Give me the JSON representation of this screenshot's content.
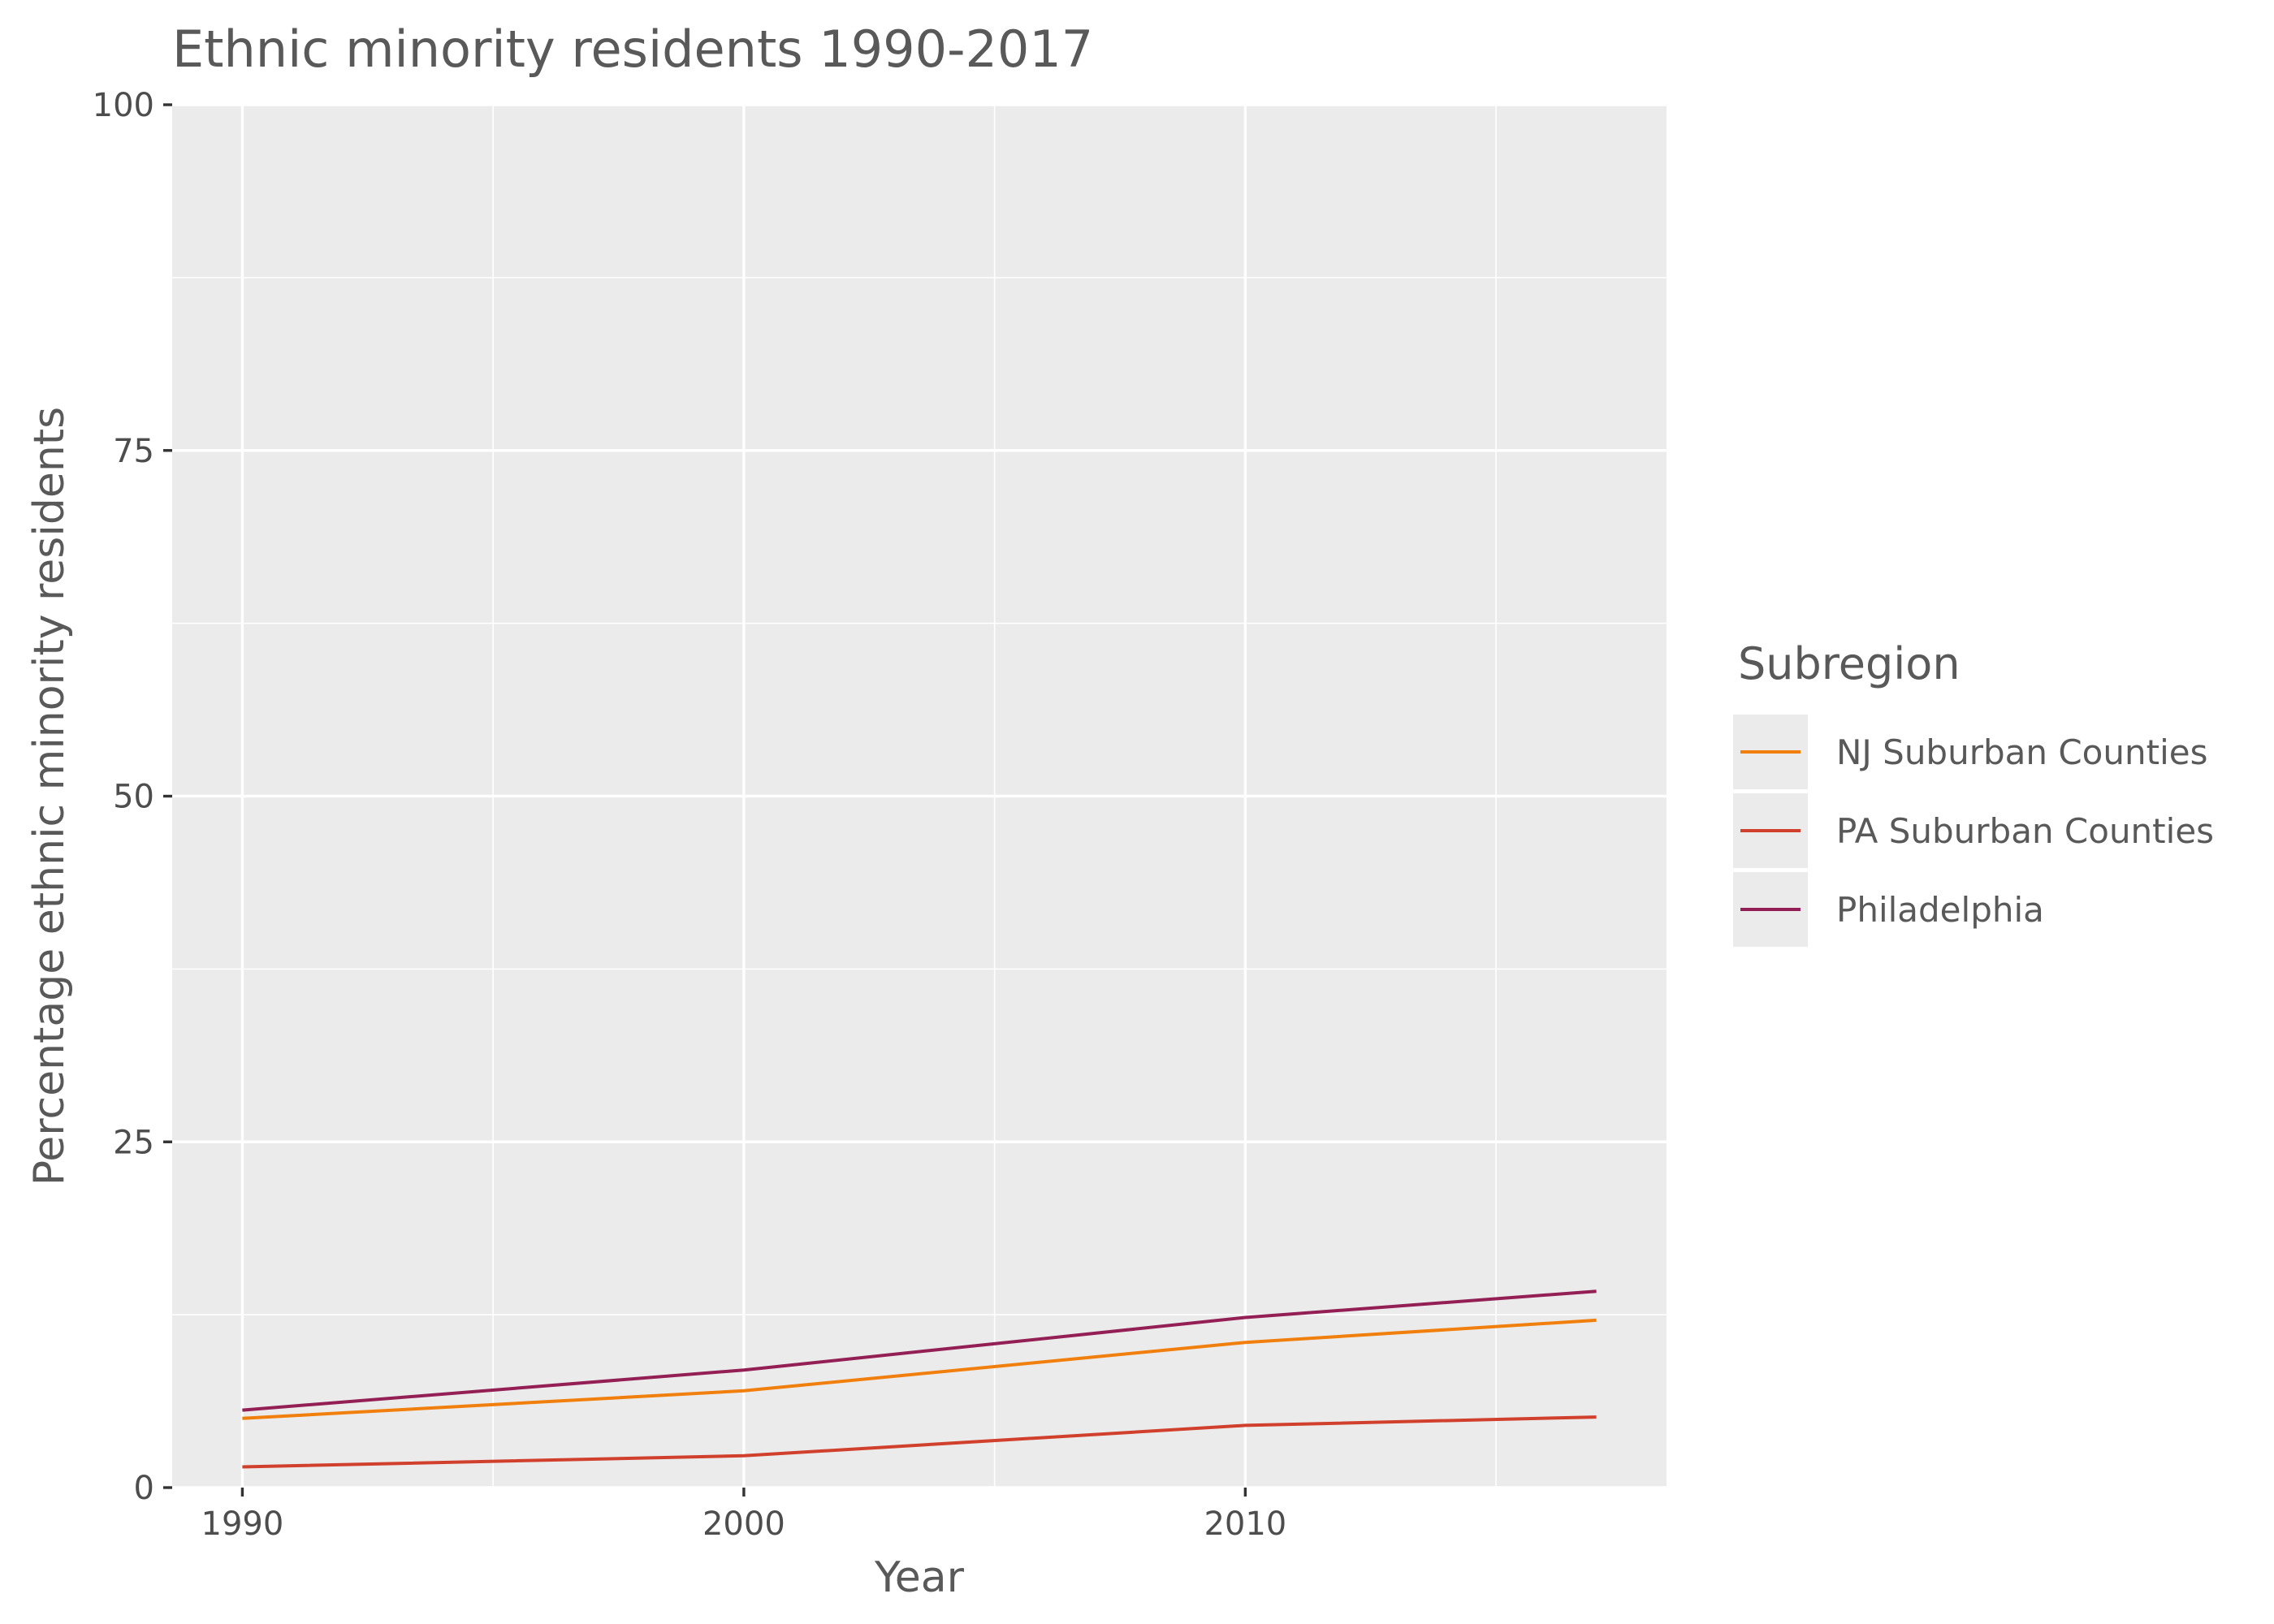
{
  "chart_data": {
    "type": "line",
    "title": "Ethnic minority residents 1990-2017",
    "xlabel": "Year",
    "ylabel": "Percentage ethnic minority residents",
    "xlim": [
      1988.6,
      2018.4
    ],
    "ylim": [
      0,
      100
    ],
    "x_ticks": [
      1990,
      2000,
      2010
    ],
    "x_minor_ticks": [
      1995,
      2005,
      2015
    ],
    "y_ticks": [
      0,
      25,
      50,
      75,
      100
    ],
    "y_minor_ticks": [
      12.5,
      37.5,
      62.5,
      87.5
    ],
    "grid": true,
    "legend": {
      "title": "Subregion",
      "position": "right"
    },
    "x": [
      1990,
      2000,
      2010,
      2017
    ],
    "series": [
      {
        "name": "NJ Suburban Counties",
        "color": "#F07F0E",
        "values": [
          5.0,
          7.0,
          10.5,
          12.1
        ]
      },
      {
        "name": "PA Suburban Counties",
        "color": "#D1402C",
        "values": [
          1.5,
          2.3,
          4.5,
          5.1
        ]
      },
      {
        "name": "Philadelphia",
        "color": "#931F55",
        "values": [
          5.6,
          8.5,
          12.3,
          14.2
        ]
      }
    ],
    "colors": {
      "panel": "#EBEBEB",
      "grid": "#FFFFFF",
      "text": "#595959"
    }
  }
}
